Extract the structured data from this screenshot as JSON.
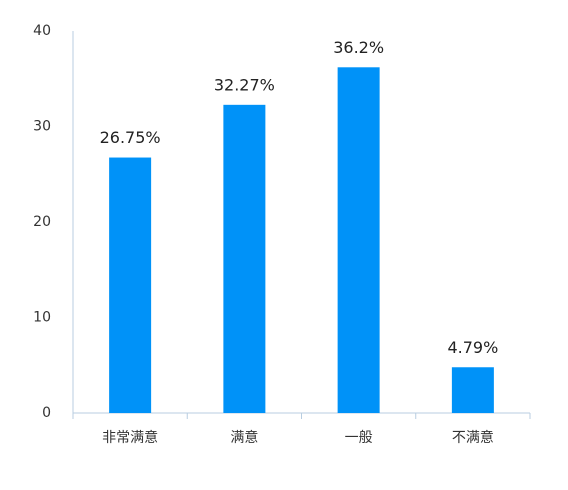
{
  "chart_data": {
    "type": "bar",
    "categories": [
      "非常满意",
      "满意",
      "一般",
      "不满意"
    ],
    "values": [
      26.75,
      32.27,
      36.2,
      4.79
    ],
    "value_labels": [
      "26.75%",
      "32.27%",
      "36.2%",
      "4.79%"
    ],
    "color": "#0092f8",
    "ylim": [
      0,
      40
    ],
    "yticks": [
      0,
      10,
      20,
      30,
      40
    ],
    "grid": false
  }
}
